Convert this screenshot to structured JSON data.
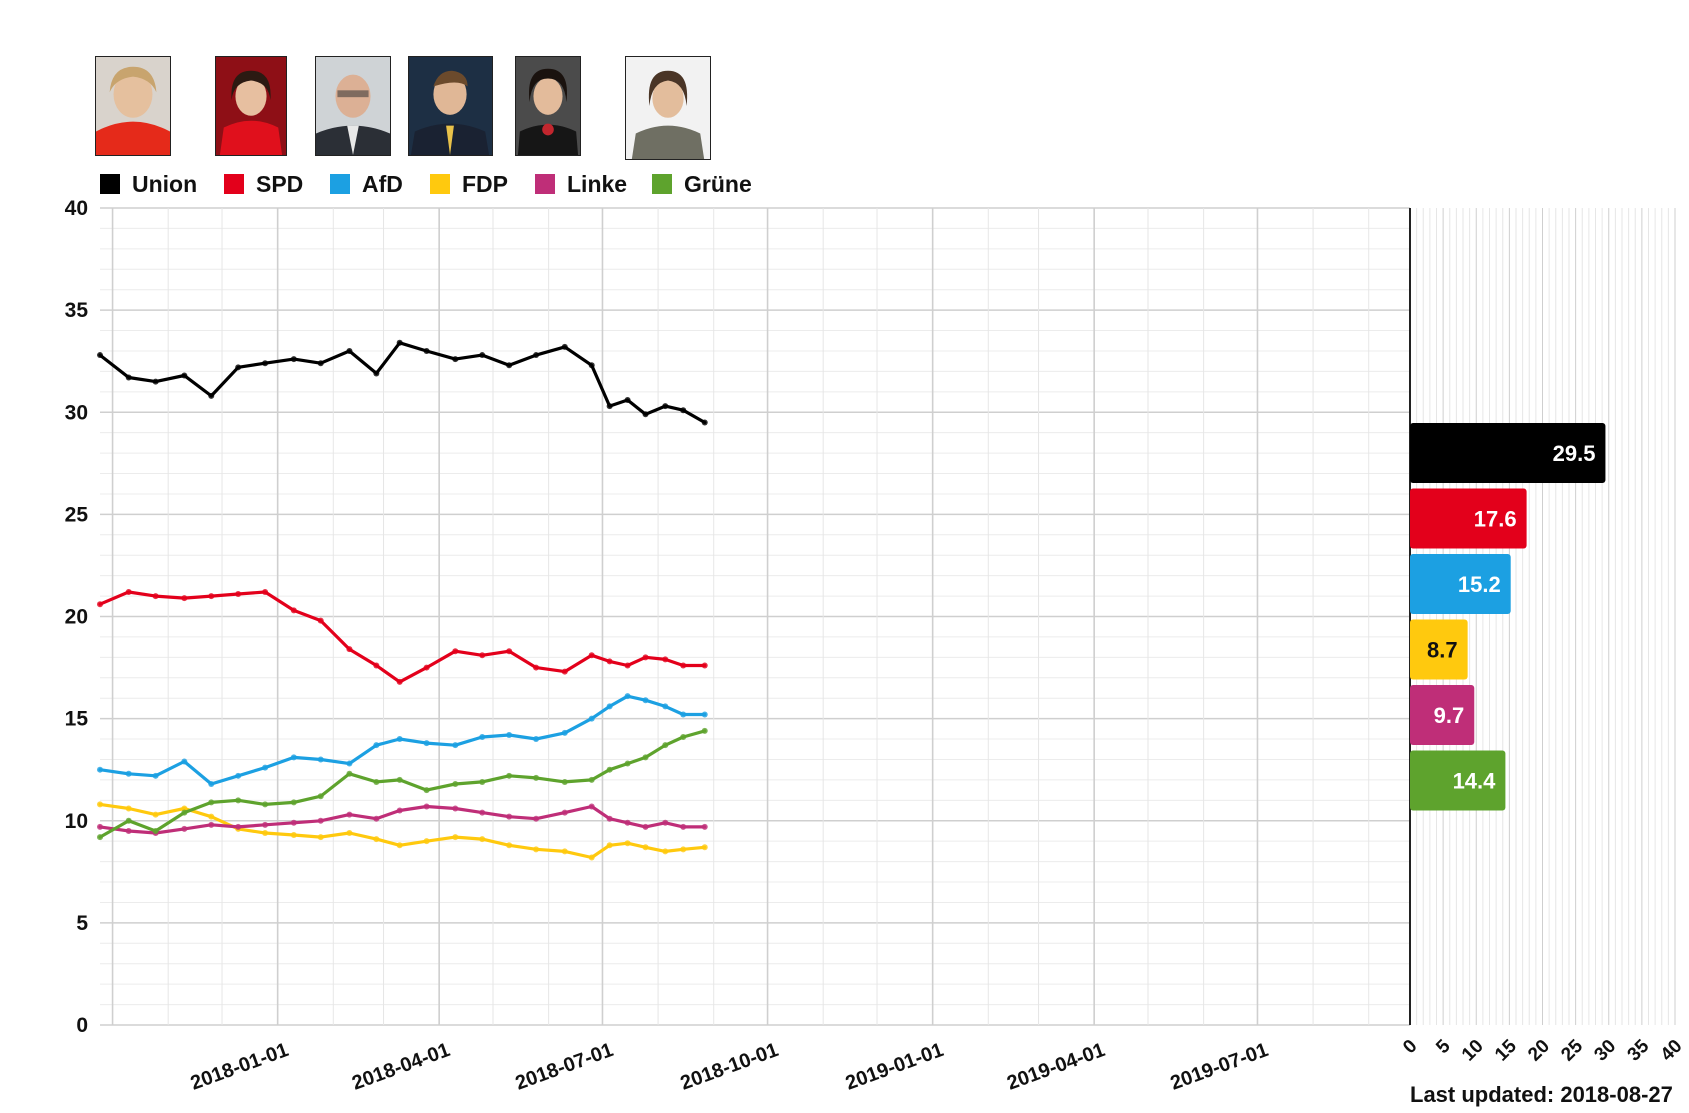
{
  "legend": [
    {
      "id": "union",
      "label": "Union",
      "color": "#000000"
    },
    {
      "id": "spd",
      "label": "SPD",
      "color": "#e3001b"
    },
    {
      "id": "afd",
      "label": "AfD",
      "color": "#1ca0e2"
    },
    {
      "id": "fdp",
      "label": "FDP",
      "color": "#ffc90e"
    },
    {
      "id": "linke",
      "label": "Linke",
      "color": "#bf2e78"
    },
    {
      "id": "gruene",
      "label": "Grüne",
      "color": "#5ea32d"
    }
  ],
  "chart_data": {
    "type": "line",
    "x_axis": {
      "ticks": [
        "2018-01-01",
        "2018-04-01",
        "2018-07-01",
        "2018-10-01",
        "2019-01-01",
        "2019-04-01",
        "2019-07-01"
      ],
      "range": [
        "2017-09-24",
        "2019-09-24"
      ]
    },
    "y_axis": {
      "ticks": [
        "0",
        "5",
        "10",
        "15",
        "20",
        "25",
        "30",
        "35",
        "40"
      ],
      "ylim": [
        0,
        40
      ]
    },
    "grid": true,
    "series": [
      {
        "name": "Union",
        "color": "#000000",
        "x": [
          "2017-09-24",
          "2017-10-10",
          "2017-10-25",
          "2017-11-10",
          "2017-11-25",
          "2017-12-10",
          "2017-12-25",
          "2018-01-10",
          "2018-01-25",
          "2018-02-10",
          "2018-02-25",
          "2018-03-10",
          "2018-03-25",
          "2018-04-10",
          "2018-04-25",
          "2018-05-10",
          "2018-05-25",
          "2018-06-10",
          "2018-06-25",
          "2018-07-05",
          "2018-07-15",
          "2018-07-25",
          "2018-08-05",
          "2018-08-15",
          "2018-08-27"
        ],
        "y": [
          32.8,
          31.7,
          31.5,
          31.8,
          30.8,
          32.2,
          32.4,
          32.6,
          32.4,
          33,
          31.9,
          33.4,
          33,
          32.6,
          32.8,
          32.3,
          32.8,
          33.2,
          32.3,
          30.3,
          30.6,
          29.9,
          30.3,
          30.1,
          29.5
        ]
      },
      {
        "name": "SPD",
        "color": "#e3001b",
        "x": [
          "2017-09-24",
          "2017-10-10",
          "2017-10-25",
          "2017-11-10",
          "2017-11-25",
          "2017-12-10",
          "2017-12-25",
          "2018-01-10",
          "2018-01-25",
          "2018-02-10",
          "2018-02-25",
          "2018-03-10",
          "2018-03-25",
          "2018-04-10",
          "2018-04-25",
          "2018-05-10",
          "2018-05-25",
          "2018-06-10",
          "2018-06-25",
          "2018-07-05",
          "2018-07-15",
          "2018-07-25",
          "2018-08-05",
          "2018-08-15",
          "2018-08-27"
        ],
        "y": [
          20.6,
          21.2,
          21,
          20.9,
          21,
          21.1,
          21.2,
          20.3,
          19.8,
          18.4,
          17.6,
          16.8,
          17.5,
          18.3,
          18.1,
          18.3,
          17.5,
          17.3,
          18.1,
          17.8,
          17.6,
          18,
          17.9,
          17.6,
          17.6
        ]
      },
      {
        "name": "AfD",
        "color": "#1ca0e2",
        "x": [
          "2017-09-24",
          "2017-10-10",
          "2017-10-25",
          "2017-11-10",
          "2017-11-25",
          "2017-12-10",
          "2017-12-25",
          "2018-01-10",
          "2018-01-25",
          "2018-02-10",
          "2018-02-25",
          "2018-03-10",
          "2018-03-25",
          "2018-04-10",
          "2018-04-25",
          "2018-05-10",
          "2018-05-25",
          "2018-06-10",
          "2018-06-25",
          "2018-07-05",
          "2018-07-15",
          "2018-07-25",
          "2018-08-05",
          "2018-08-15",
          "2018-08-27"
        ],
        "y": [
          12.5,
          12.3,
          12.2,
          12.9,
          11.8,
          12.2,
          12.6,
          13.1,
          13,
          12.8,
          13.7,
          14,
          13.8,
          13.7,
          14.1,
          14.2,
          14,
          14.3,
          15,
          15.6,
          16.1,
          15.9,
          15.6,
          15.2,
          15.2
        ]
      },
      {
        "name": "FDP",
        "color": "#ffc90e",
        "x": [
          "2017-09-24",
          "2017-10-10",
          "2017-10-25",
          "2017-11-10",
          "2017-11-25",
          "2017-12-10",
          "2017-12-25",
          "2018-01-10",
          "2018-01-25",
          "2018-02-10",
          "2018-02-25",
          "2018-03-10",
          "2018-03-25",
          "2018-04-10",
          "2018-04-25",
          "2018-05-10",
          "2018-05-25",
          "2018-06-10",
          "2018-06-25",
          "2018-07-05",
          "2018-07-15",
          "2018-07-25",
          "2018-08-05",
          "2018-08-15",
          "2018-08-27"
        ],
        "y": [
          10.8,
          10.6,
          10.3,
          10.6,
          10.2,
          9.6,
          9.4,
          9.3,
          9.2,
          9.4,
          9.1,
          8.8,
          9,
          9.2,
          9.1,
          8.8,
          8.6,
          8.5,
          8.2,
          8.8,
          8.9,
          8.7,
          8.5,
          8.6,
          8.7
        ]
      },
      {
        "name": "Linke",
        "color": "#bf2e78",
        "x": [
          "2017-09-24",
          "2017-10-10",
          "2017-10-25",
          "2017-11-10",
          "2017-11-25",
          "2017-12-10",
          "2017-12-25",
          "2018-01-10",
          "2018-01-25",
          "2018-02-10",
          "2018-02-25",
          "2018-03-10",
          "2018-03-25",
          "2018-04-10",
          "2018-04-25",
          "2018-05-10",
          "2018-05-25",
          "2018-06-10",
          "2018-06-25",
          "2018-07-05",
          "2018-07-15",
          "2018-07-25",
          "2018-08-05",
          "2018-08-15",
          "2018-08-27"
        ],
        "y": [
          9.7,
          9.5,
          9.4,
          9.6,
          9.8,
          9.7,
          9.8,
          9.9,
          10,
          10.3,
          10.1,
          10.5,
          10.7,
          10.6,
          10.4,
          10.2,
          10.1,
          10.4,
          10.7,
          10.1,
          9.9,
          9.7,
          9.9,
          9.7,
          9.7
        ]
      },
      {
        "name": "Grüne",
        "color": "#5ea32d",
        "x": [
          "2017-09-24",
          "2017-10-10",
          "2017-10-25",
          "2017-11-10",
          "2017-11-25",
          "2017-12-10",
          "2017-12-25",
          "2018-01-10",
          "2018-01-25",
          "2018-02-10",
          "2018-02-25",
          "2018-03-10",
          "2018-03-25",
          "2018-04-10",
          "2018-04-25",
          "2018-05-10",
          "2018-05-25",
          "2018-06-10",
          "2018-06-25",
          "2018-07-05",
          "2018-07-15",
          "2018-07-25",
          "2018-08-05",
          "2018-08-15",
          "2018-08-27"
        ],
        "y": [
          9.2,
          10,
          9.5,
          10.4,
          10.9,
          11,
          10.8,
          10.9,
          11.2,
          12.3,
          11.9,
          12,
          11.5,
          11.8,
          11.9,
          12.2,
          12.1,
          11.9,
          12,
          12.5,
          12.8,
          13.1,
          13.7,
          14.1,
          14.4
        ]
      }
    ],
    "bars": {
      "type": "bar",
      "categories": [
        "Union",
        "SPD",
        "AfD",
        "FDP",
        "Linke",
        "Grüne"
      ],
      "values": [
        29.5,
        17.6,
        15.2,
        8.7,
        9.7,
        14.4
      ],
      "labels": [
        "29.5",
        "17.6",
        "15.2",
        "8.7",
        "9.7",
        "14.4"
      ],
      "label_colors": [
        "#ffffff",
        "#ffffff",
        "#ffffff",
        "#111111",
        "#ffffff",
        "#ffffff"
      ],
      "x_ticks": [
        "0",
        "5",
        "10",
        "15",
        "20",
        "25",
        "30",
        "35",
        "40"
      ],
      "xlim": [
        0,
        40
      ]
    }
  },
  "footer": {
    "last_updated": "Last updated: 2018-08-27"
  }
}
